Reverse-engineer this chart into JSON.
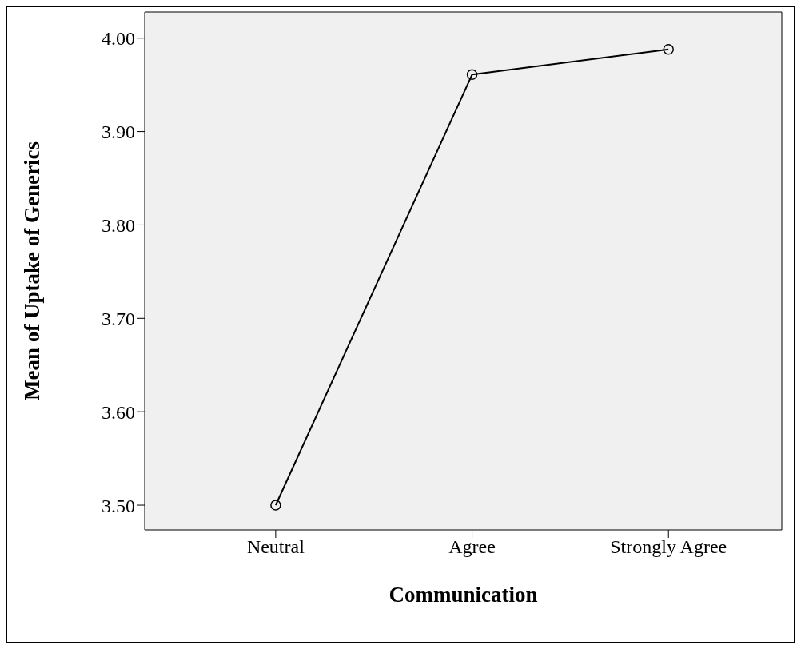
{
  "chart_data": {
    "type": "line",
    "xlabel": "Communication",
    "ylabel": "Mean of Uptake of Generics",
    "categories": [
      "Neutral",
      "Agree",
      "Strongly Agree"
    ],
    "series": [
      {
        "color": "#000000",
        "values": [
          3.5,
          3.961,
          3.988
        ]
      }
    ],
    "ylim": [
      3.4735,
      4.028
    ],
    "yticks": [
      {
        "value": 3.5,
        "label": "3.50"
      },
      {
        "value": 3.6,
        "label": "3.60"
      },
      {
        "value": 3.7,
        "label": "3.70"
      },
      {
        "value": 3.8,
        "label": "3.80"
      },
      {
        "value": 3.9,
        "label": "3.90"
      },
      {
        "value": 4.0,
        "label": "4.00"
      }
    ],
    "grid": false,
    "marker": "circle",
    "line_style": "solid"
  }
}
